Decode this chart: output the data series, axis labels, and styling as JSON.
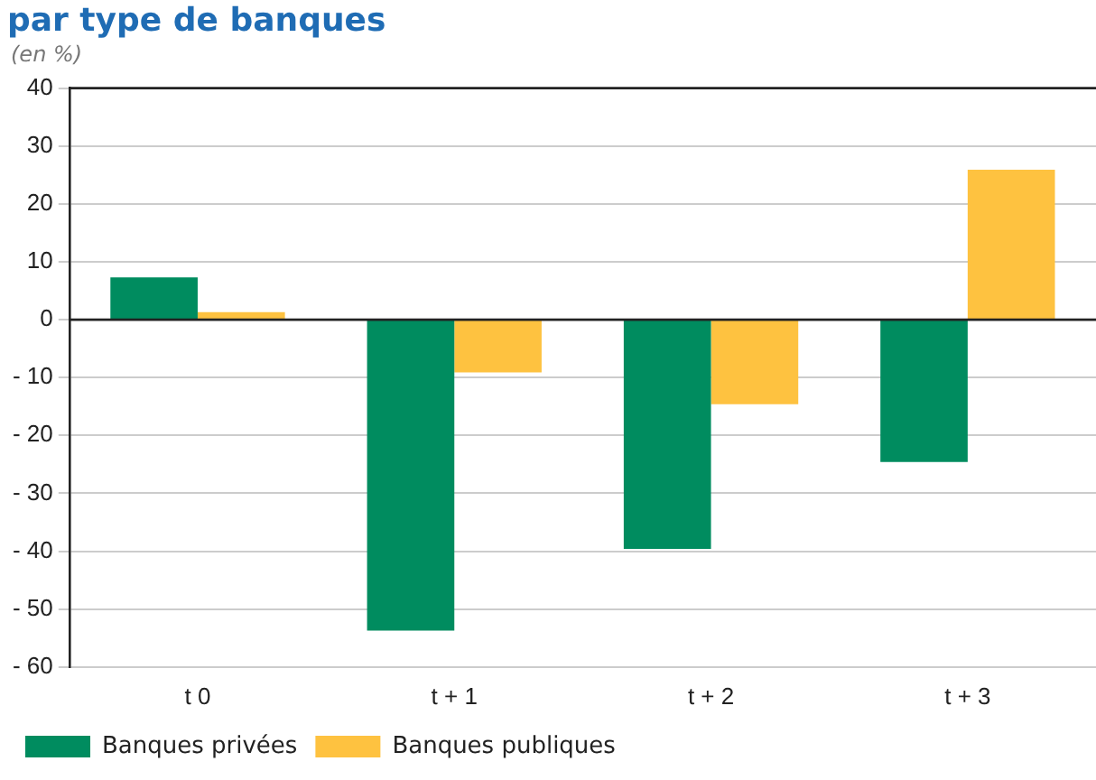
{
  "chart_data": {
    "type": "bar",
    "title": "par type de banques",
    "subtitle": "(en %)",
    "categories": [
      "t 0",
      "t + 1",
      "t + 2",
      "t + 3"
    ],
    "series": [
      {
        "name": "Banques privées",
        "color": "#008c5f",
        "values": [
          7.3,
          -53.7,
          -39.6,
          -24.6
        ]
      },
      {
        "name": "Banques publiques",
        "color": "#fec240",
        "values": [
          1.3,
          -9.1,
          -14.6,
          25.9
        ]
      }
    ],
    "ylim": [
      -60,
      40
    ],
    "yticks": [
      {
        "value": -60,
        "label": "- 60"
      },
      {
        "value": -50,
        "label": "- 50"
      },
      {
        "value": -40,
        "label": "- 40"
      },
      {
        "value": -30,
        "label": "- 30"
      },
      {
        "value": -20,
        "label": "- 20"
      },
      {
        "value": -10,
        "label": "- 10"
      },
      0,
      10,
      20,
      30,
      40
    ],
    "grid": "y",
    "legend": "bottom left"
  }
}
